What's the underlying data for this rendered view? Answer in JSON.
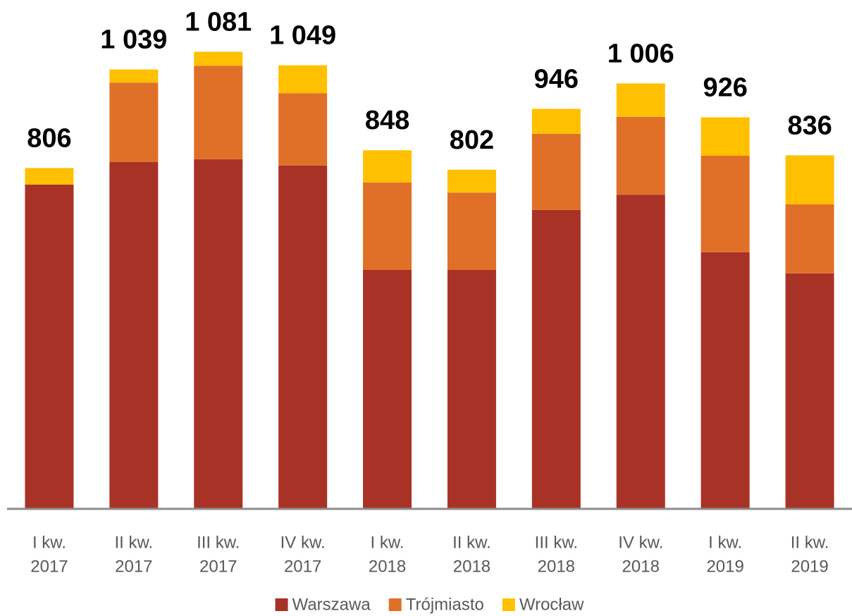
{
  "chart_data": {
    "type": "stacked_bar",
    "categories": [
      [
        "I kw.",
        "2017"
      ],
      [
        "II kw.",
        "2017"
      ],
      [
        "III kw.",
        "2017"
      ],
      [
        "IV kw.",
        "2017"
      ],
      [
        "I kw.",
        "2018"
      ],
      [
        "II kw.",
        "2018"
      ],
      [
        "III kw.",
        "2018"
      ],
      [
        "IV kw.",
        "2018"
      ],
      [
        "I kw.",
        "2019"
      ],
      [
        "II kw.",
        "2019"
      ]
    ],
    "series": [
      {
        "name": "Warszawa",
        "color": "#a93226",
        "values": [
          767,
          820,
          827,
          812,
          565,
          565,
          707,
          743,
          607,
          557
        ]
      },
      {
        "name": "Trójmiasto",
        "color": "#e07028",
        "values": [
          0,
          188,
          221,
          171,
          207,
          183,
          180,
          184,
          228,
          163
        ]
      },
      {
        "name": "Wrocław",
        "color": "#ffc000",
        "values": [
          39,
          31,
          33,
          66,
          76,
          54,
          59,
          79,
          91,
          116
        ]
      }
    ],
    "totals": [
      806,
      1039,
      1081,
      1049,
      848,
      802,
      946,
      1006,
      926,
      836
    ],
    "total_labels": [
      "806",
      "1 039",
      "1 081",
      "1 049",
      "848",
      "802",
      "946",
      "1 006",
      "926",
      "836"
    ],
    "ylim": [
      0,
      1170
    ],
    "legend": "bottom"
  }
}
